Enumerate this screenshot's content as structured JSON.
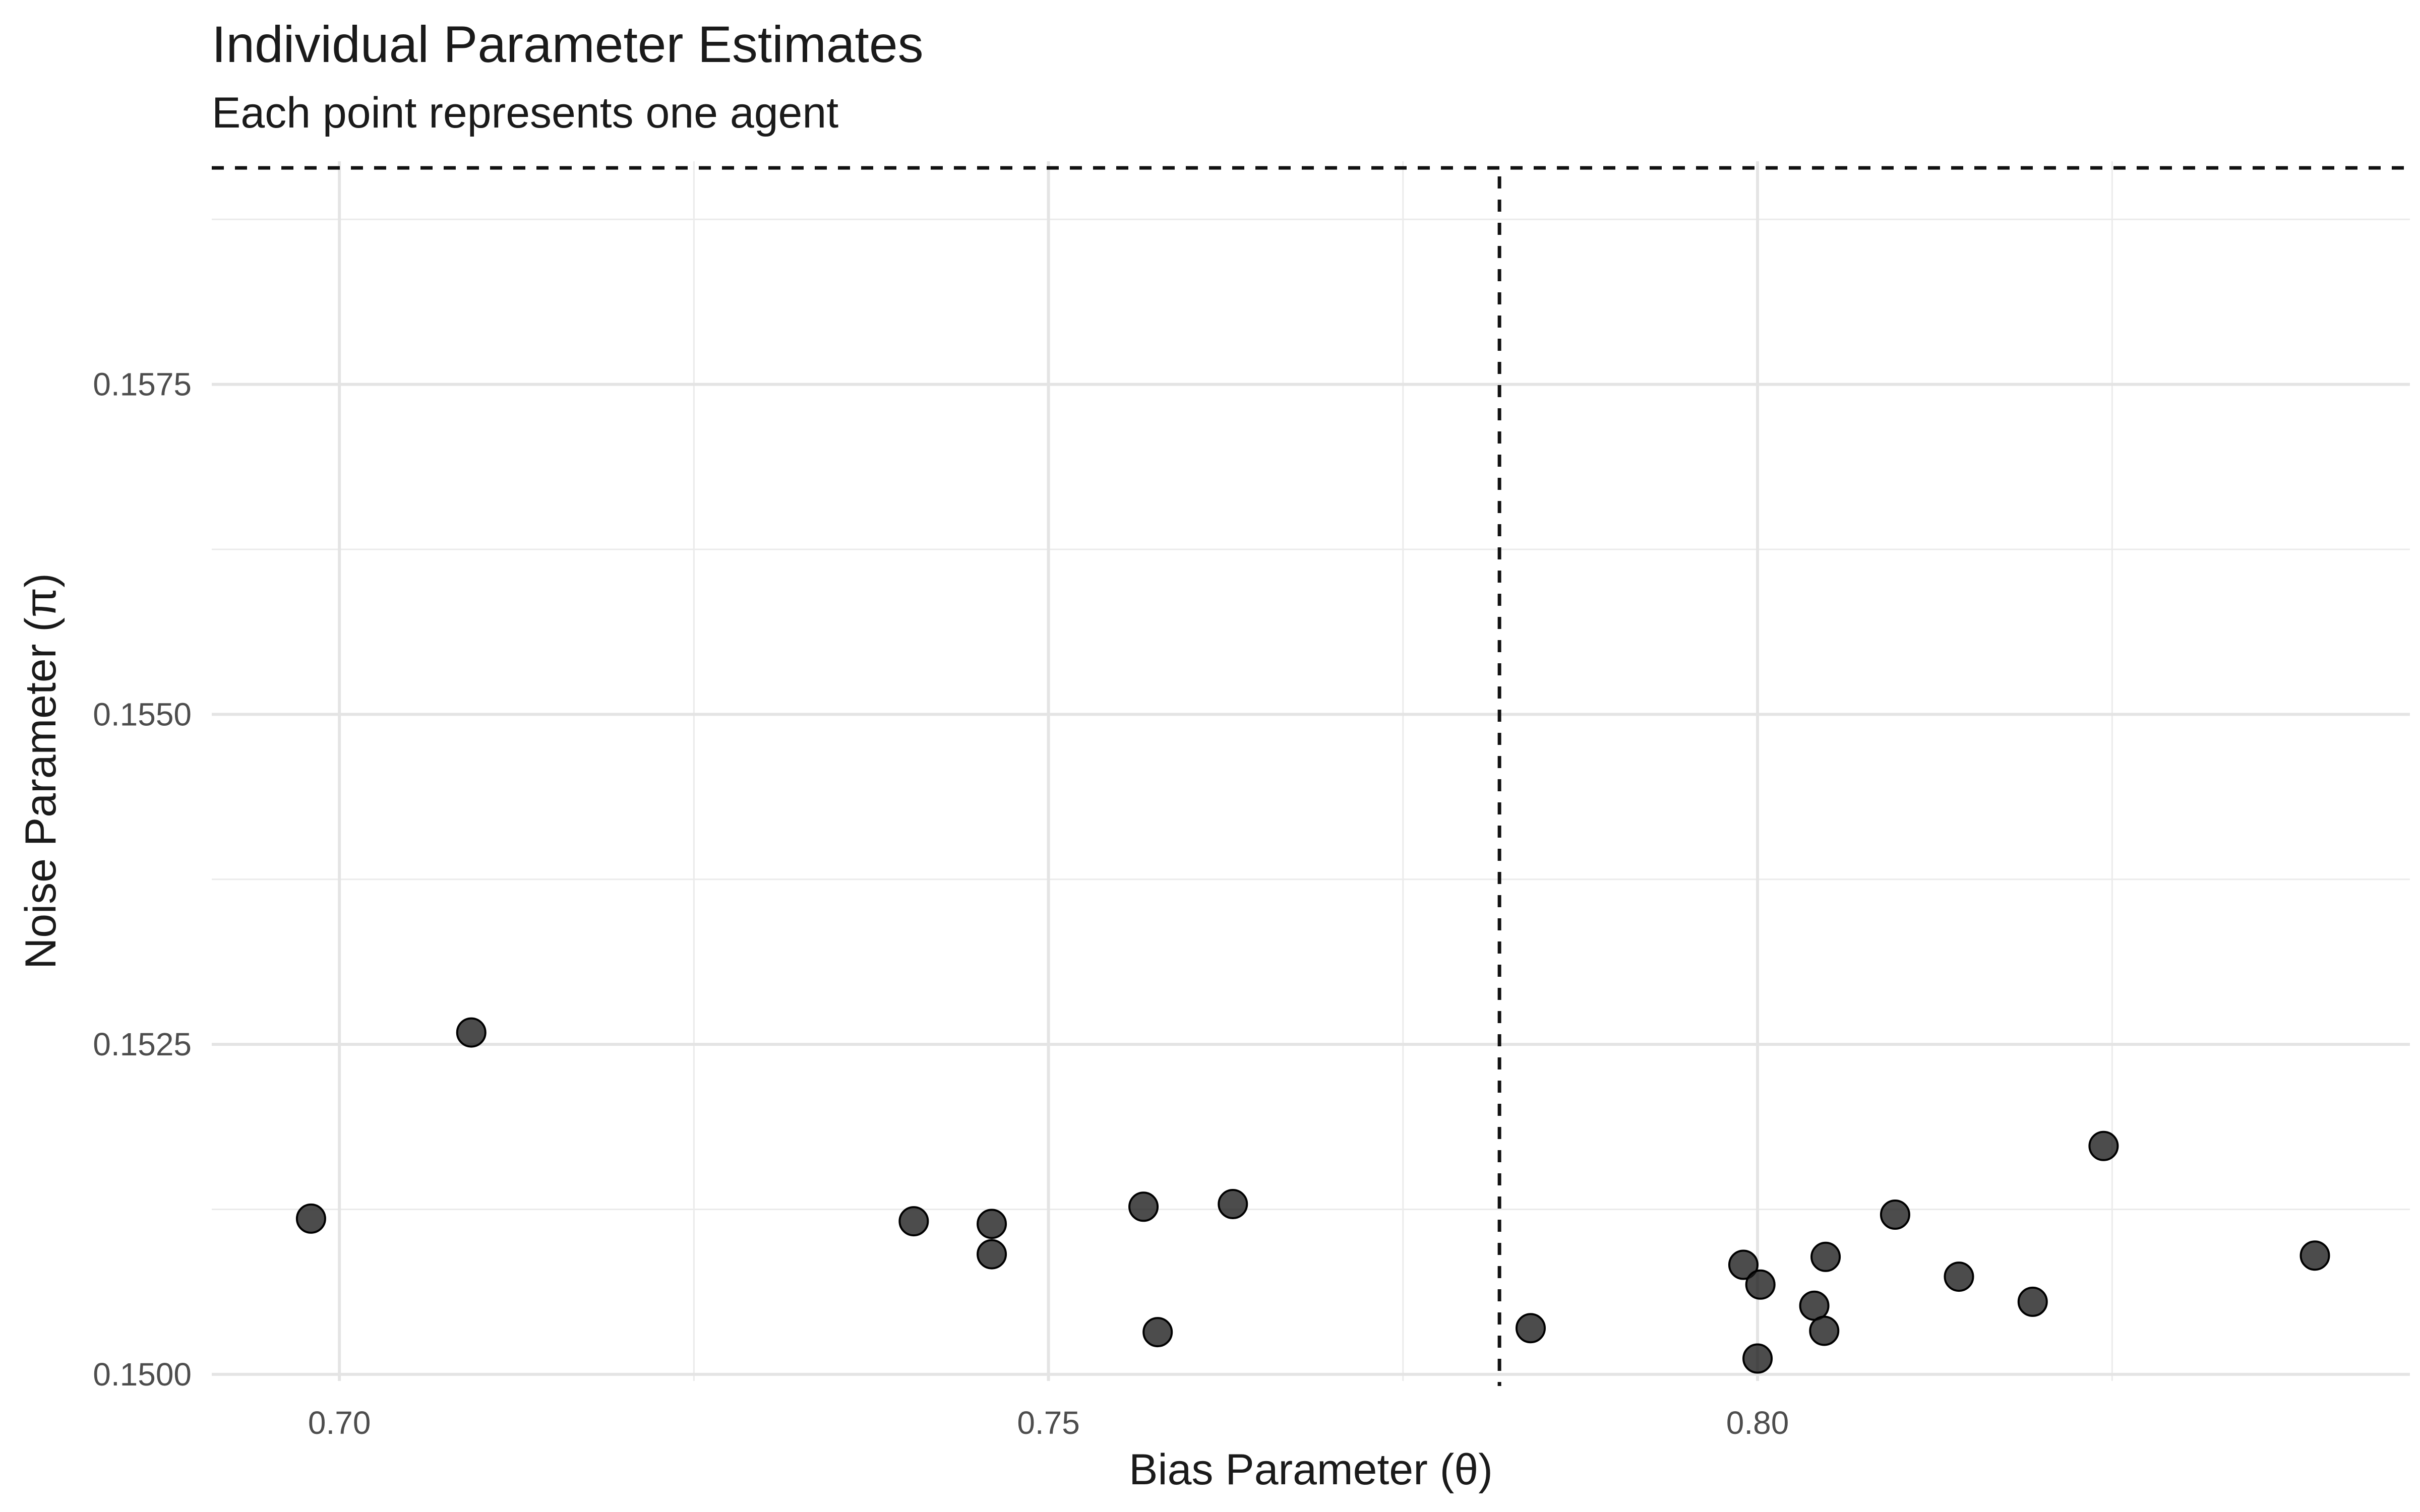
{
  "chart_data": {
    "type": "scatter",
    "title": "Individual Parameter Estimates",
    "subtitle": "Each point represents one agent",
    "xlabel": "Bias Parameter (θ)",
    "ylabel": "Noise Parameter (π)",
    "xlim": [
      0.691,
      0.846
    ],
    "ylim": [
      0.14995,
      0.15919
    ],
    "x_ticks": [
      0.7,
      0.75,
      0.8
    ],
    "x_tick_labels": [
      "0.70",
      "0.75",
      "0.80"
    ],
    "y_ticks": [
      0.15,
      0.1525,
      0.155,
      0.1575
    ],
    "y_tick_labels": [
      "0.1500",
      "0.1525",
      "0.1550",
      "0.1575"
    ],
    "grid": true,
    "point_color": "#1a1a1a",
    "reference_lines": [
      {
        "orientation": "vertical",
        "x": 0.7818,
        "style": "dashed"
      },
      {
        "orientation": "horizontal",
        "y": 0.15914,
        "style": "dashed"
      }
    ],
    "points": [
      {
        "x": 0.698,
        "y": 0.15118
      },
      {
        "x": 0.7093,
        "y": 0.15259
      },
      {
        "x": 0.7405,
        "y": 0.15116
      },
      {
        "x": 0.746,
        "y": 0.15114
      },
      {
        "x": 0.746,
        "y": 0.15091
      },
      {
        "x": 0.7567,
        "y": 0.15127
      },
      {
        "x": 0.7577,
        "y": 0.15032
      },
      {
        "x": 0.763,
        "y": 0.15129
      },
      {
        "x": 0.784,
        "y": 0.15035
      },
      {
        "x": 0.799,
        "y": 0.15083
      },
      {
        "x": 0.8002,
        "y": 0.15068
      },
      {
        "x": 0.8,
        "y": 0.15012
      },
      {
        "x": 0.804,
        "y": 0.15052
      },
      {
        "x": 0.8048,
        "y": 0.15089
      },
      {
        "x": 0.8047,
        "y": 0.15033
      },
      {
        "x": 0.8097,
        "y": 0.15121
      },
      {
        "x": 0.8142,
        "y": 0.15074
      },
      {
        "x": 0.8194,
        "y": 0.15055
      },
      {
        "x": 0.8244,
        "y": 0.15173
      },
      {
        "x": 0.8393,
        "y": 0.1509
      }
    ]
  }
}
